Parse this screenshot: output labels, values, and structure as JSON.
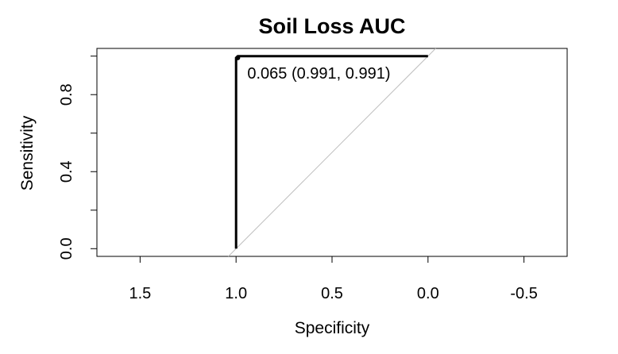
{
  "chart_data": {
    "type": "line",
    "title": "Soil Loss AUC",
    "xlabel": "Specificity",
    "ylabel": "Sensitivity",
    "x_reversed": true,
    "xlim": [
      1.725,
      -0.725
    ],
    "ylim": [
      -0.04,
      1.04
    ],
    "x_ticks": [
      1.5,
      1.0,
      0.5,
      0.0,
      -0.5
    ],
    "x_tick_labels": [
      "1.5",
      "1.0",
      "0.5",
      "0.0",
      "-0.5"
    ],
    "y_ticks": [
      0.0,
      0.2,
      0.4,
      0.6,
      0.8,
      1.0
    ],
    "y_tick_labels": [
      "0.0",
      "",
      "0.4",
      "",
      "0.8",
      ""
    ],
    "grid": false,
    "series": [
      {
        "x": [
          1.0,
          1.0,
          0.991,
          0.0
        ],
        "y": [
          0.0,
          0.991,
          1.0,
          1.0
        ],
        "color": "#000000"
      }
    ],
    "reference_line": {
      "x": [
        1.0,
        0.0
      ],
      "y": [
        0.0,
        1.0
      ],
      "color": "#bebebe"
    },
    "threshold_point": {
      "x": 0.991,
      "y": 0.991,
      "label": "0.065 (0.991, 0.991)"
    }
  }
}
